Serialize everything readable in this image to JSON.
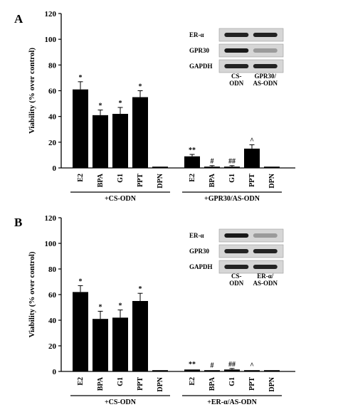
{
  "chart_data": [
    {
      "type": "bar",
      "panel": "A",
      "ylabel": "Viability (% over control)",
      "ylim": [
        0,
        120
      ],
      "yticks": [
        0,
        20,
        40,
        60,
        80,
        100,
        120
      ],
      "categories": [
        "E2",
        "BPA",
        "G1",
        "PPT",
        "DPN",
        "E2",
        "BPA",
        "G1",
        "PPT",
        "DPN"
      ],
      "values": [
        61,
        41,
        42,
        55,
        1,
        9,
        1,
        1,
        15,
        1
      ],
      "errors": [
        6,
        4,
        5,
        5,
        0.5,
        1.5,
        0.8,
        0.8,
        3,
        0.5
      ],
      "significance": [
        "*",
        "*",
        "*",
        "*",
        "",
        "**",
        "#",
        "##",
        "^",
        ""
      ],
      "groups": [
        {
          "label": "+CS-ODN",
          "members": [
            0,
            1,
            2,
            3,
            4
          ]
        },
        {
          "label": "+GPR30/AS-ODN",
          "members": [
            5,
            6,
            7,
            8,
            9
          ]
        }
      ],
      "blot": {
        "rows": [
          "ER-α",
          "GPR30",
          "GAPDH"
        ],
        "lanes": [
          "CS-\nODN",
          "GPR30/\nAS-ODN"
        ],
        "bands": [
          [
            0.9,
            0.9
          ],
          [
            0.95,
            0.3
          ],
          [
            0.9,
            0.9
          ]
        ]
      }
    },
    {
      "type": "bar",
      "panel": "B",
      "ylabel": "Viability (% over control)",
      "ylim": [
        0,
        120
      ],
      "yticks": [
        0,
        20,
        40,
        60,
        80,
        100,
        120
      ],
      "categories": [
        "E2",
        "BPA",
        "G1",
        "PPT",
        "DPN",
        "E2",
        "BPA",
        "G1",
        "PPT",
        "DPN"
      ],
      "values": [
        62,
        41,
        42,
        55,
        1,
        1.5,
        1,
        1.5,
        1,
        1
      ],
      "errors": [
        5,
        6,
        6,
        6,
        0.5,
        0.6,
        0.5,
        0.8,
        0.5,
        0.5
      ],
      "significance": [
        "*",
        "*",
        "*",
        "*",
        "",
        "**",
        "#",
        "##",
        "^",
        ""
      ],
      "groups": [
        {
          "label": "+CS-ODN",
          "members": [
            0,
            1,
            2,
            3,
            4
          ]
        },
        {
          "label": "+ER-α/AS-ODN",
          "members": [
            5,
            6,
            7,
            8,
            9
          ]
        }
      ],
      "blot": {
        "rows": [
          "ER-α",
          "GPR30",
          "GAPDH"
        ],
        "lanes": [
          "CS-\nODN",
          "ER-α/\nAS-ODN"
        ],
        "bands": [
          [
            0.95,
            0.3
          ],
          [
            0.9,
            0.9
          ],
          [
            0.9,
            0.9
          ]
        ]
      }
    }
  ]
}
